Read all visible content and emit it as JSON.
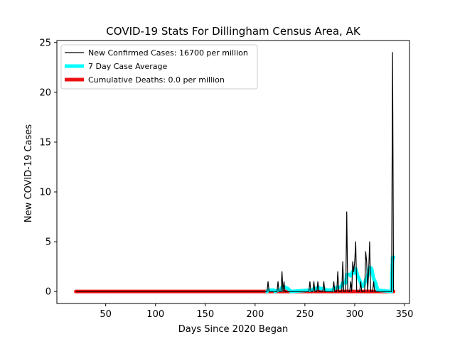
{
  "chart_data": {
    "type": "line",
    "title": "COVID-19 Stats For Dillingham Census Area, AK",
    "xlabel": "Days Since 2020 Began",
    "ylabel": "New COVID-19 Cases",
    "xlim": [
      1,
      355
    ],
    "ylim": [
      -1.2,
      25.2
    ],
    "xticks": [
      50,
      100,
      150,
      200,
      250,
      300,
      350
    ],
    "yticks": [
      0,
      5,
      10,
      15,
      20,
      25
    ],
    "grid": false,
    "legend_position": "top-left",
    "series": [
      {
        "name": "New Confirmed Cases: 16700 per million",
        "color": "#000000",
        "points": [
          [
            20,
            0
          ],
          [
            212,
            0
          ],
          [
            213,
            1
          ],
          [
            214,
            0
          ],
          [
            222,
            0
          ],
          [
            223,
            1
          ],
          [
            224,
            0
          ],
          [
            226,
            0
          ],
          [
            227,
            2
          ],
          [
            228,
            0
          ],
          [
            229,
            1
          ],
          [
            230,
            0
          ],
          [
            254,
            0
          ],
          [
            255,
            1
          ],
          [
            256,
            0
          ],
          [
            258,
            0
          ],
          [
            259,
            1
          ],
          [
            260,
            0
          ],
          [
            262,
            0
          ],
          [
            263,
            1
          ],
          [
            264,
            0
          ],
          [
            268,
            0
          ],
          [
            269,
            1
          ],
          [
            270,
            0
          ],
          [
            278,
            0
          ],
          [
            279,
            1
          ],
          [
            280,
            0
          ],
          [
            282,
            0
          ],
          [
            283,
            2
          ],
          [
            284,
            0
          ],
          [
            287,
            0
          ],
          [
            288,
            3
          ],
          [
            289,
            0
          ],
          [
            291,
            0
          ],
          [
            292,
            8
          ],
          [
            293,
            0
          ],
          [
            295,
            0
          ],
          [
            296,
            1
          ],
          [
            297,
            0
          ],
          [
            298,
            3
          ],
          [
            299,
            2
          ],
          [
            300,
            3
          ],
          [
            301,
            5
          ],
          [
            302,
            0
          ],
          [
            305,
            0
          ],
          [
            306,
            1
          ],
          [
            307,
            0
          ],
          [
            310,
            0
          ],
          [
            311,
            4
          ],
          [
            312,
            3
          ],
          [
            313,
            0
          ],
          [
            314,
            2
          ],
          [
            315,
            5
          ],
          [
            316,
            0
          ],
          [
            318,
            0
          ],
          [
            319,
            1
          ],
          [
            320,
            0
          ],
          [
            337,
            0
          ],
          [
            338,
            24
          ],
          [
            339,
            0
          ]
        ]
      },
      {
        "name": "7 Day Case Average",
        "color": "#00ffff",
        "points": [
          [
            212,
            0
          ],
          [
            213,
            0.14
          ],
          [
            219,
            0.14
          ],
          [
            220,
            0
          ],
          [
            223,
            0.14
          ],
          [
            226,
            0.14
          ],
          [
            227,
            0.43
          ],
          [
            230,
            0.43
          ],
          [
            233,
            0.29
          ],
          [
            236,
            0
          ],
          [
            255,
            0.14
          ],
          [
            258,
            0.14
          ],
          [
            259,
            0.29
          ],
          [
            262,
            0.29
          ],
          [
            263,
            0.43
          ],
          [
            266,
            0.29
          ],
          [
            269,
            0.29
          ],
          [
            272,
            0.14
          ],
          [
            278,
            0.14
          ],
          [
            279,
            0.29
          ],
          [
            283,
            0.43
          ],
          [
            286,
            0.43
          ],
          [
            288,
            0.86
          ],
          [
            291,
            0.86
          ],
          [
            292,
            1.71
          ],
          [
            295,
            1.71
          ],
          [
            296,
            1.57
          ],
          [
            298,
            2.0
          ],
          [
            300,
            1.86
          ],
          [
            301,
            2.29
          ],
          [
            303,
            1.57
          ],
          [
            305,
            1.14
          ],
          [
            307,
            0.57
          ],
          [
            309,
            0.57
          ],
          [
            311,
            1.14
          ],
          [
            313,
            1.57
          ],
          [
            315,
            2.43
          ],
          [
            317,
            2.29
          ],
          [
            319,
            1.29
          ],
          [
            321,
            0.86
          ],
          [
            323,
            0.14
          ],
          [
            337,
            0
          ],
          [
            338,
            3.43
          ],
          [
            339,
            3.43
          ]
        ]
      },
      {
        "name": "Cumulative Deaths: 0.0 per million",
        "color": "#ee1111",
        "points": [
          [
            20,
            0
          ],
          [
            339,
            0
          ]
        ]
      }
    ]
  }
}
